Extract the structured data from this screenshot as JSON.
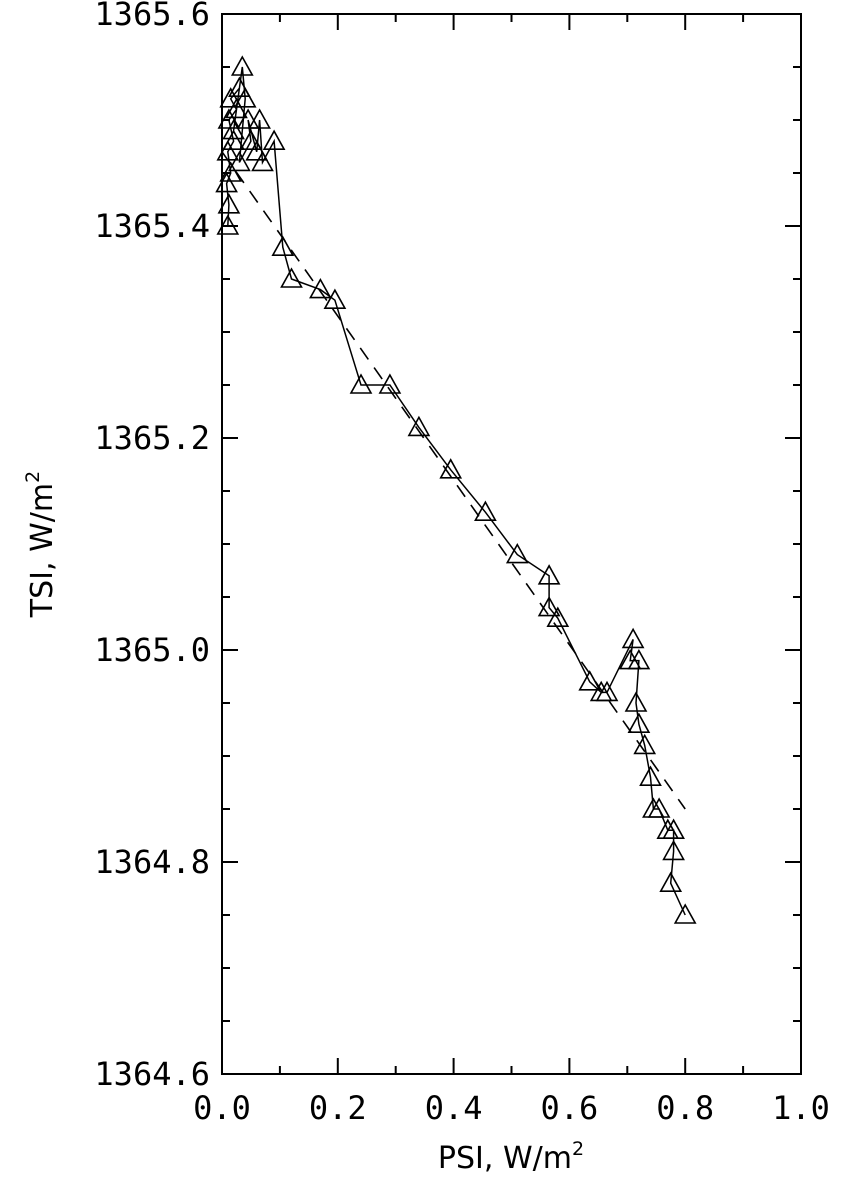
{
  "chart_data": {
    "type": "scatter",
    "xlabel": "PSI, W/m",
    "xlabel_sup": "2",
    "ylabel": "TSI, W/m",
    "ylabel_sup": "2",
    "xlim": [
      0.0,
      1.0
    ],
    "ylim": [
      1364.6,
      1365.6
    ],
    "x_ticks": [
      0.0,
      0.2,
      0.4,
      0.6,
      0.8,
      1.0
    ],
    "x_tick_labels": [
      "0.0",
      "0.2",
      "0.4",
      "0.6",
      "0.8",
      "1.0"
    ],
    "y_ticks": [
      1364.6,
      1364.8,
      1365.0,
      1365.2,
      1365.4,
      1365.6
    ],
    "y_tick_labels": [
      "1364.6",
      "1364.8",
      "1365.0",
      "1365.2",
      "1365.4",
      "1365.6"
    ],
    "grid": false,
    "marker": "open-triangle",
    "series": [
      {
        "points": [
          [
            0.01,
            1365.4
          ],
          [
            0.012,
            1365.42
          ],
          [
            0.008,
            1365.44
          ],
          [
            0.015,
            1365.45
          ],
          [
            0.01,
            1365.47
          ],
          [
            0.02,
            1365.48
          ],
          [
            0.012,
            1365.5
          ],
          [
            0.025,
            1365.51
          ],
          [
            0.015,
            1365.52
          ],
          [
            0.03,
            1365.53
          ],
          [
            0.02,
            1365.49
          ],
          [
            0.035,
            1365.55
          ],
          [
            0.04,
            1365.52
          ],
          [
            0.03,
            1365.46
          ],
          [
            0.05,
            1365.48
          ],
          [
            0.045,
            1365.5
          ],
          [
            0.06,
            1365.47
          ],
          [
            0.065,
            1365.5
          ],
          [
            0.07,
            1365.46
          ],
          [
            0.09,
            1365.48
          ],
          [
            0.105,
            1365.38
          ],
          [
            0.12,
            1365.35
          ],
          [
            0.17,
            1365.34
          ],
          [
            0.195,
            1365.33
          ],
          [
            0.24,
            1365.25
          ],
          [
            0.29,
            1365.25
          ],
          [
            0.34,
            1365.21
          ],
          [
            0.395,
            1365.17
          ],
          [
            0.455,
            1365.13
          ],
          [
            0.51,
            1365.09
          ],
          [
            0.565,
            1365.07
          ],
          [
            0.565,
            1365.04
          ],
          [
            0.58,
            1365.03
          ],
          [
            0.635,
            1364.97
          ],
          [
            0.655,
            1364.96
          ],
          [
            0.665,
            1364.96
          ],
          [
            0.71,
            1365.01
          ],
          [
            0.705,
            1364.99
          ],
          [
            0.72,
            1364.99
          ],
          [
            0.715,
            1364.95
          ],
          [
            0.72,
            1364.93
          ],
          [
            0.73,
            1364.91
          ],
          [
            0.74,
            1364.88
          ],
          [
            0.745,
            1364.85
          ],
          [
            0.755,
            1364.85
          ],
          [
            0.77,
            1364.83
          ],
          [
            0.78,
            1364.83
          ],
          [
            0.78,
            1364.81
          ],
          [
            0.775,
            1364.78
          ],
          [
            0.8,
            1364.75
          ]
        ]
      }
    ],
    "fit_line": {
      "style": "dashed",
      "x": [
        0.0,
        0.8
      ],
      "y": [
        1365.47,
        1364.85
      ]
    }
  }
}
